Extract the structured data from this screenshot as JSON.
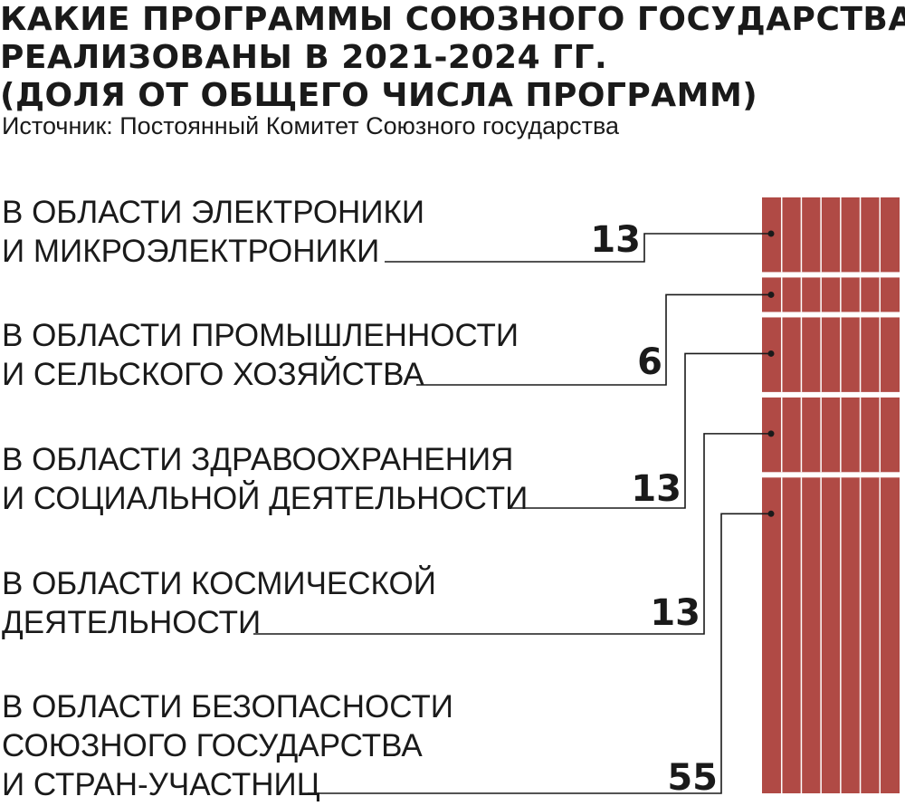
{
  "title_lines": [
    "КАКИЕ  ПРОГРАММЫ СОЮЗНОГО ГОСУДАРСТВА",
    "РЕАЛИЗОВАНЫ В 2021-2024 ГГ.",
    "(ДОЛЯ ОТ ОБЩЕГО ЧИСЛА ПРОГРАММ)"
  ],
  "source": "Источник: Постоянный Комитет Союзного государства",
  "colors": {
    "bar": "#b04a45",
    "divider": "#ffffff",
    "text": "#1a1a1a"
  },
  "chart_data": {
    "type": "bar",
    "stacked": true,
    "orientation": "vertical-single-stack",
    "unit": "percent",
    "categories": [
      "В ОБЛАСТИ ЭЛЕКТРОНИКИ И МИКРОЭЛЕКТРОНИКИ",
      "В ОБЛАСТИ ПРОМЫШЛЕННОСТИ И СЕЛЬСКОГО ХОЗЯЙСТВА",
      "В ОБЛАСТИ ЗДРАВООХРАНЕНИЯ И СОЦИАЛЬНОЙ ДЕЯТЕЛЬНОСТИ",
      "В ОБЛАСТИ КОСМИЧЕСКОЙ ДЕЯТЕЛЬНОСТИ",
      "В ОБЛАСТИ БЕЗОПАСНОСТИ СОЮЗНОГО ГОСУДАРСТВА И СТРАН-УЧАСТНИЦ"
    ],
    "category_lines": [
      [
        "В ОБЛАСТИ ЭЛЕКТРОНИКИ",
        "И МИКРОЭЛЕКТРОНИКИ"
      ],
      [
        "В ОБЛАСТИ ПРОМЫШЛЕННОСТИ",
        "И СЕЛЬСКОГО ХОЗЯЙСТВА"
      ],
      [
        "В ОБЛАСТИ ЗДРАВООХРАНЕНИЯ",
        "И СОЦИАЛЬНОЙ ДЕЯТЕЛЬНОСТИ"
      ],
      [
        "В ОБЛАСТИ КОСМИЧЕСКОЙ",
        "ДЕЯТЕЛЬНОСТИ"
      ],
      [
        "В ОБЛАСТИ БЕЗОПАСНОСТИ",
        "СОЮЗНОГО ГОСУДАРСТВА",
        "И СТРАН-УЧАСТНИЦ"
      ]
    ],
    "values": [
      13,
      6,
      13,
      13,
      55
    ],
    "data_labels": [
      "13",
      "6",
      "13",
      "13",
      "55"
    ]
  }
}
